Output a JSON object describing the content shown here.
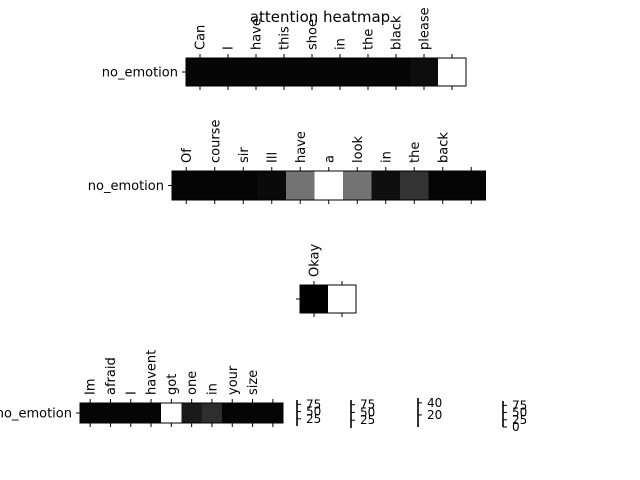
{
  "chart_data": {
    "type": "heatmap",
    "title": "attention heatmap",
    "colormap": [
      "#000000",
      "#ffffff"
    ],
    "panels": [
      {
        "row_label": "no_emotion",
        "tokens": [
          "Can",
          "I",
          "have",
          "this",
          "shoe",
          "in",
          "the",
          "black",
          "please",
          ""
        ],
        "values": [
          0.02,
          0.02,
          0.02,
          0.02,
          0.02,
          0.02,
          0.02,
          0.02,
          0.05,
          1.0
        ]
      },
      {
        "row_label": "no_emotion",
        "tokens": [
          "Of",
          "course",
          "sir",
          "Ill",
          "have",
          "a",
          "look",
          "in",
          "the",
          "back",
          ""
        ],
        "values": [
          0.02,
          0.02,
          0.02,
          0.04,
          0.45,
          1.0,
          0.45,
          0.06,
          0.2,
          0.02,
          0.02
        ]
      },
      {
        "row_label": "",
        "tokens": [
          "Okay",
          ""
        ],
        "values": [
          0.0,
          1.0
        ]
      },
      {
        "row_label": "no_emotion",
        "tokens": [
          "Im",
          "afraid",
          "I",
          "havent",
          "got",
          "one",
          "in",
          "your",
          "size",
          ""
        ],
        "values": [
          0.02,
          0.02,
          0.02,
          0.02,
          1.0,
          0.1,
          0.18,
          0.02,
          0.02,
          0.02
        ]
      }
    ],
    "colorbars": [
      {
        "ticks": [
          "75",
          "50",
          "25"
        ]
      },
      {
        "ticks": [
          "75",
          "50",
          "25"
        ]
      },
      {
        "ticks": [
          "40",
          "20"
        ]
      },
      {
        "ticks": [
          "75",
          "50",
          "25",
          "0"
        ]
      }
    ]
  }
}
